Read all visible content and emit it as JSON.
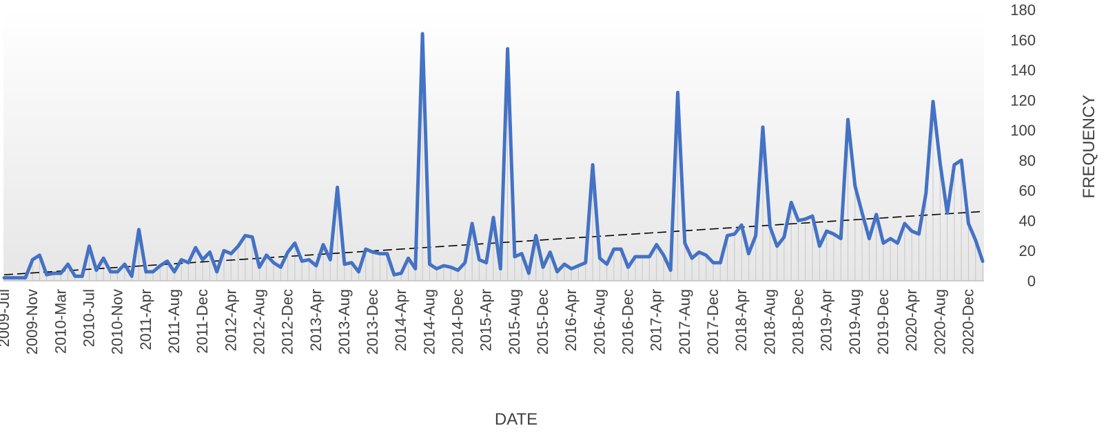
{
  "chart_data": {
    "type": "line",
    "xlabel": "DATE",
    "ylabel": "FREQUENCY",
    "ylim": [
      0,
      180
    ],
    "yticks": [
      0,
      20,
      40,
      60,
      80,
      100,
      120,
      140,
      160,
      180
    ],
    "y_axis_side": "right",
    "grid": false,
    "legend": "none",
    "trendline": {
      "type": "linear",
      "style": "dashed",
      "color": "#000000",
      "start": 4,
      "end": 46
    },
    "xtick_labels": [
      "2009-Jul",
      "2009-Nov",
      "2010-Mar",
      "2010-Jul",
      "2010-Nov",
      "2011-Apr",
      "2011-Aug",
      "2011-Dec",
      "2012-Apr",
      "2012-Aug",
      "2012-Dec",
      "2013-Apr",
      "2013-Aug",
      "2013-Dec",
      "2014-Apr",
      "2014-Aug",
      "2014-Dec",
      "2015-Apr",
      "2015-Aug",
      "2015-Dec",
      "2016-Apr",
      "2016-Aug",
      "2016-Dec",
      "2017-Apr",
      "2017-Aug",
      "2017-Dec",
      "2018-Apr",
      "2018-Aug",
      "2018-Dec",
      "2019-Apr",
      "2019-Aug",
      "2019-Dec",
      "2020-Apr",
      "2020-Aug",
      "2020-Dec"
    ],
    "series": [
      {
        "color": "#4472C4",
        "values": [
          2,
          2,
          2,
          2,
          14,
          17,
          4,
          5,
          5,
          11,
          3,
          3,
          23,
          7,
          15,
          6,
          6,
          11,
          3,
          34,
          6,
          6,
          10,
          13,
          6,
          14,
          12,
          22,
          14,
          19,
          6,
          20,
          18,
          23,
          30,
          29,
          9,
          17,
          12,
          9,
          19,
          25,
          13,
          14,
          10,
          24,
          14,
          62,
          11,
          12,
          6,
          21,
          19,
          18,
          18,
          4,
          5,
          15,
          8,
          164,
          11,
          8,
          10,
          9,
          7,
          12,
          38,
          14,
          12,
          42,
          8,
          154,
          16,
          18,
          5,
          30,
          9,
          19,
          6,
          11,
          8,
          10,
          12,
          77,
          15,
          11,
          21,
          21,
          9,
          16,
          16,
          16,
          24,
          17,
          7,
          125,
          25,
          15,
          19,
          17,
          12,
          12,
          30,
          31,
          37,
          18,
          30,
          102,
          36,
          23,
          29,
          52,
          40,
          41,
          43,
          23,
          33,
          31,
          28,
          107,
          63,
          45,
          28,
          44,
          25,
          28,
          25,
          38,
          33,
          31,
          58,
          119,
          78,
          45,
          77,
          80,
          38,
          27,
          13
        ]
      }
    ]
  }
}
